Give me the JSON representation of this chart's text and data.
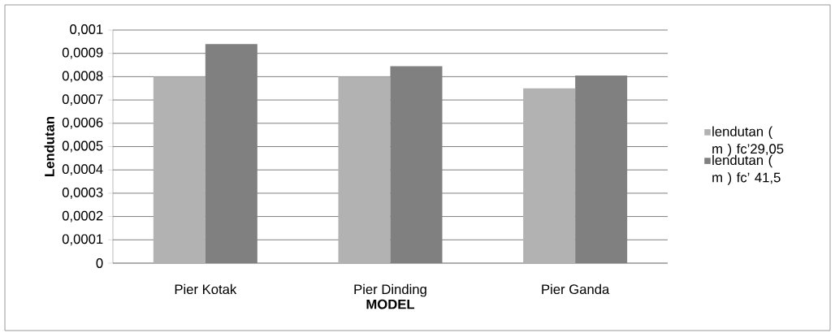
{
  "chart_data": {
    "type": "bar",
    "xlabel": "MODEL",
    "ylabel": "Lendutan",
    "categories": [
      "Pier Kotak",
      "Pier Dinding",
      "Pier Ganda"
    ],
    "series": [
      {
        "name": "lendutan ( m ) fc’29,05",
        "color": "#b2b2b2",
        "values": [
          0.0008,
          0.0008,
          0.00075
        ]
      },
      {
        "name": "lendutan ( m ) fc’ 41,5",
        "color": "#808080",
        "values": [
          0.00094,
          0.000845,
          0.000805
        ]
      }
    ],
    "ylim": [
      0,
      0.001
    ],
    "yticks": [
      {
        "value": 0,
        "label": "0"
      },
      {
        "value": 0.0001,
        "label": "0,0001"
      },
      {
        "value": 0.0002,
        "label": "0,0002"
      },
      {
        "value": 0.0003,
        "label": "0,0003"
      },
      {
        "value": 0.0004,
        "label": "0,0004"
      },
      {
        "value": 0.0005,
        "label": "0,0005"
      },
      {
        "value": 0.0006,
        "label": "0,0006"
      },
      {
        "value": 0.0007,
        "label": "0,0007"
      },
      {
        "value": 0.0008,
        "label": "0,0008"
      },
      {
        "value": 0.0009,
        "label": "0,0009"
      },
      {
        "value": 0.001,
        "label": "0,001"
      }
    ],
    "grid": "y",
    "legend": "right"
  }
}
